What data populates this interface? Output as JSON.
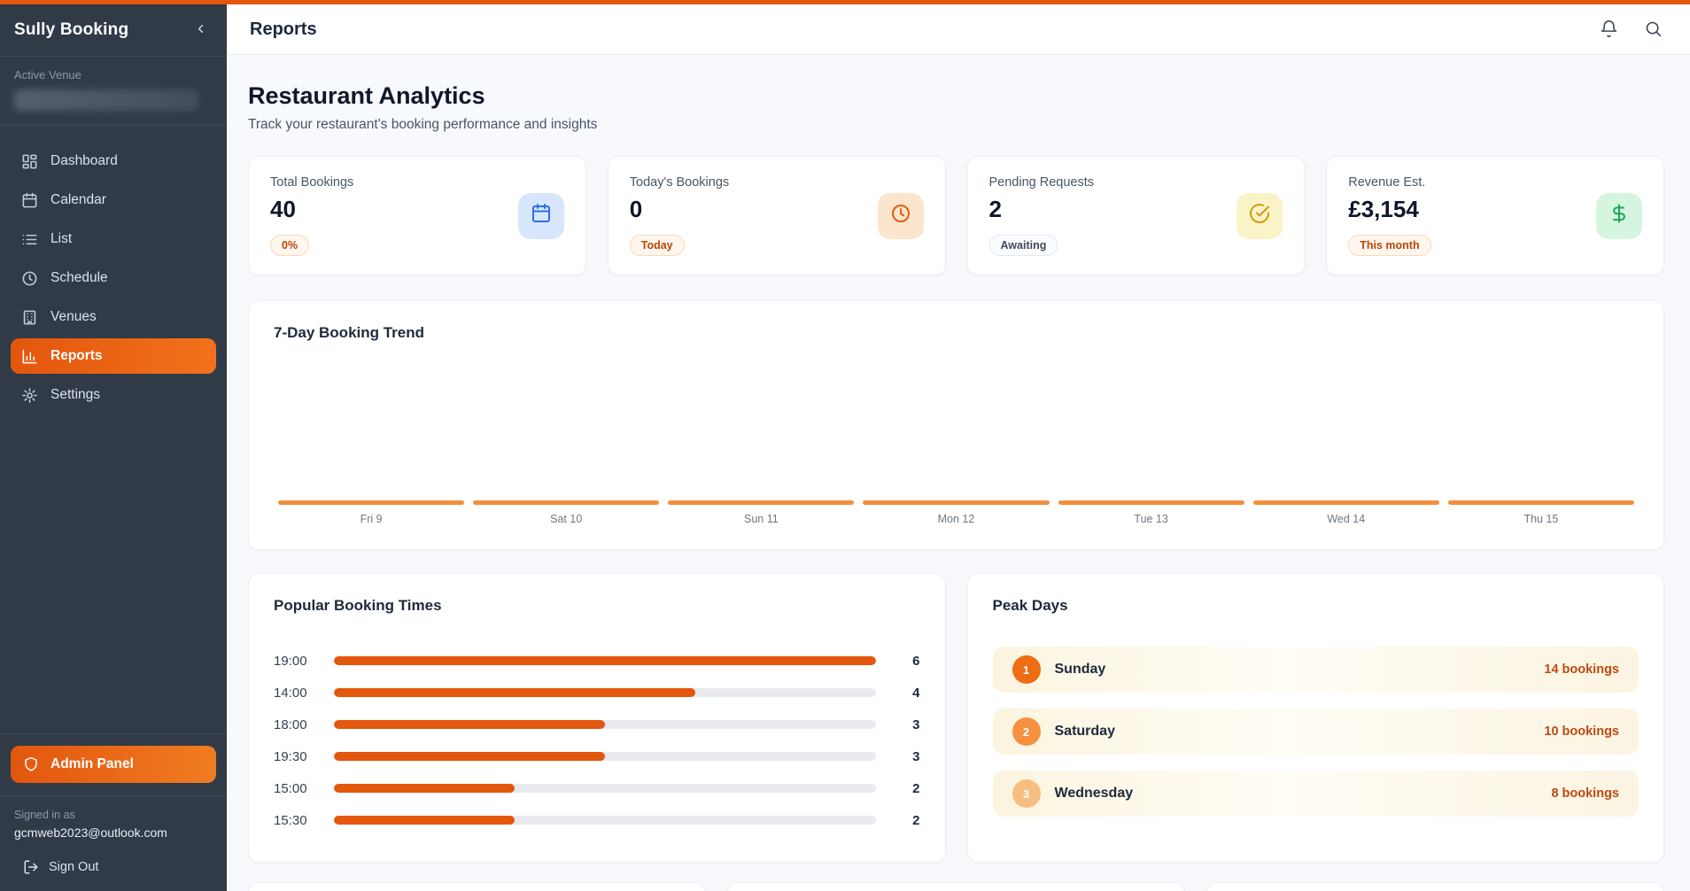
{
  "app": {
    "brand": "Sully Booking"
  },
  "sidebar": {
    "active_venue_label": "Active Venue",
    "venue_name_redacted": true,
    "active_item": "Reports",
    "nav": [
      {
        "label": "Dashboard",
        "icon": "dashboard"
      },
      {
        "label": "Calendar",
        "icon": "calendar"
      },
      {
        "label": "List",
        "icon": "list"
      },
      {
        "label": "Schedule",
        "icon": "clock"
      },
      {
        "label": "Venues",
        "icon": "building"
      },
      {
        "label": "Reports",
        "icon": "bar-chart"
      },
      {
        "label": "Settings",
        "icon": "gear"
      }
    ],
    "admin_panel_label": "Admin Panel",
    "signed_in_as_label": "Signed in as",
    "user_email": "gcmweb2023@outlook.com",
    "sign_out_label": "Sign Out"
  },
  "header": {
    "title": "Reports",
    "icons": [
      "bell-icon",
      "search-icon"
    ]
  },
  "page": {
    "title": "Restaurant Analytics",
    "subtitle": "Track your restaurant's booking performance and insights"
  },
  "stats": [
    {
      "label": "Total Bookings",
      "value": "40",
      "badge": "0%",
      "badge_style": "orange",
      "icon": "calendar",
      "icon_bg": "#d7e6fb",
      "icon_color": "#2f6fe4"
    },
    {
      "label": "Today's Bookings",
      "value": "0",
      "badge": "Today",
      "badge_style": "orange",
      "icon": "clock",
      "icon_bg": "#fbe5cd",
      "icon_color": "#e45c12"
    },
    {
      "label": "Pending Requests",
      "value": "2",
      "badge": "Awaiting",
      "badge_style": "neutral",
      "icon": "check-circle",
      "icon_bg": "#fbf3c8",
      "icon_color": "#d19c10"
    },
    {
      "label": "Revenue Est.",
      "value": "£3,154",
      "badge": "This month",
      "badge_style": "orange",
      "icon": "dollar",
      "icon_bg": "#d6f5e1",
      "icon_color": "#1ba65a"
    }
  ],
  "chart_data": [
    {
      "type": "bar",
      "title": "7-Day Booking Trend",
      "categories": [
        "Fri 9",
        "Sat 10",
        "Sun 11",
        "Mon 12",
        "Tue 13",
        "Wed 14",
        "Thu 15"
      ],
      "values_visible": false,
      "equal_heights": true,
      "note": "All seven bars are rendered as thin equal-height orange strips along the baseline; no numeric values or y-axis are displayed.",
      "bar_color": "#f2903c",
      "grid": false,
      "legend": false
    },
    {
      "type": "bar",
      "orientation": "horizontal",
      "title": "Popular Booking Times",
      "categories": [
        "19:00",
        "14:00",
        "18:00",
        "19:30",
        "15:00",
        "15:30"
      ],
      "values": [
        6,
        4,
        3,
        3,
        2,
        2
      ],
      "xlim": [
        0,
        6
      ],
      "fill_color": "#e4570e",
      "track_color": "#e8eaee",
      "grid": false,
      "legend": false
    },
    {
      "type": "table",
      "title": "Peak Days",
      "rows": [
        {
          "rank": "1",
          "day": "Sunday",
          "bookings": "14 bookings",
          "badge_color": "#ef6c12"
        },
        {
          "rank": "2",
          "day": "Saturday",
          "bookings": "10 bookings",
          "badge_color": "#f59140"
        },
        {
          "rank": "3",
          "day": "Wednesday",
          "bookings": "8 bookings",
          "badge_color": "#f8bd82"
        }
      ],
      "count_color": "#bc4a12"
    }
  ],
  "theme": {
    "accent": "#e4570e",
    "sidebar_bg": "#313a47",
    "content_bg": "#f7f9fc",
    "active_nav_gradient": [
      "#e3560d",
      "#f2711c"
    ]
  }
}
